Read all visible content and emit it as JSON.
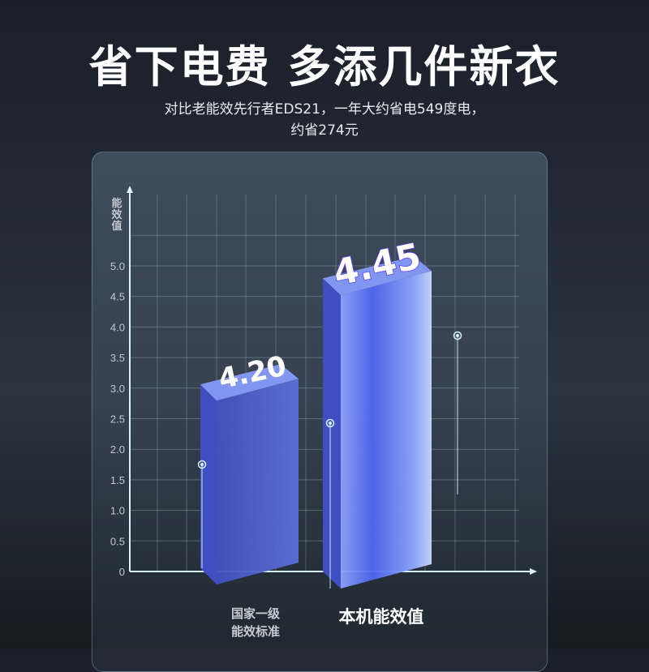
{
  "header": {
    "title": "省下电费 多添几件新衣",
    "subtitle_line1": "对比老能效先行者EDS21，一年大约省电549度电，",
    "subtitle_line2": "约省274元"
  },
  "chart_data": {
    "type": "bar",
    "style": "3d",
    "title": "",
    "ylabel": "能效值",
    "xlabel": "",
    "categories": [
      "国家一级能效标准",
      "本机能效值"
    ],
    "category_lines": [
      [
        "国家一级",
        "能效标准"
      ],
      [
        "本机能效值"
      ]
    ],
    "values": [
      4.2,
      4.45
    ],
    "data_labels": [
      "4.20",
      "4.45"
    ],
    "yticks": [
      "0",
      "0.5",
      "1.0",
      "1.5",
      "2.0",
      "2.5",
      "3.0",
      "3.5",
      "4.0",
      "4.5",
      "5.0"
    ],
    "ylim": [
      0,
      5.5
    ],
    "grid": true,
    "colors": {
      "bar": "#4f63e0",
      "bar_light": "#9fb2ff",
      "grid": "#8ea3ad",
      "axis": "#d6f2f5"
    }
  }
}
